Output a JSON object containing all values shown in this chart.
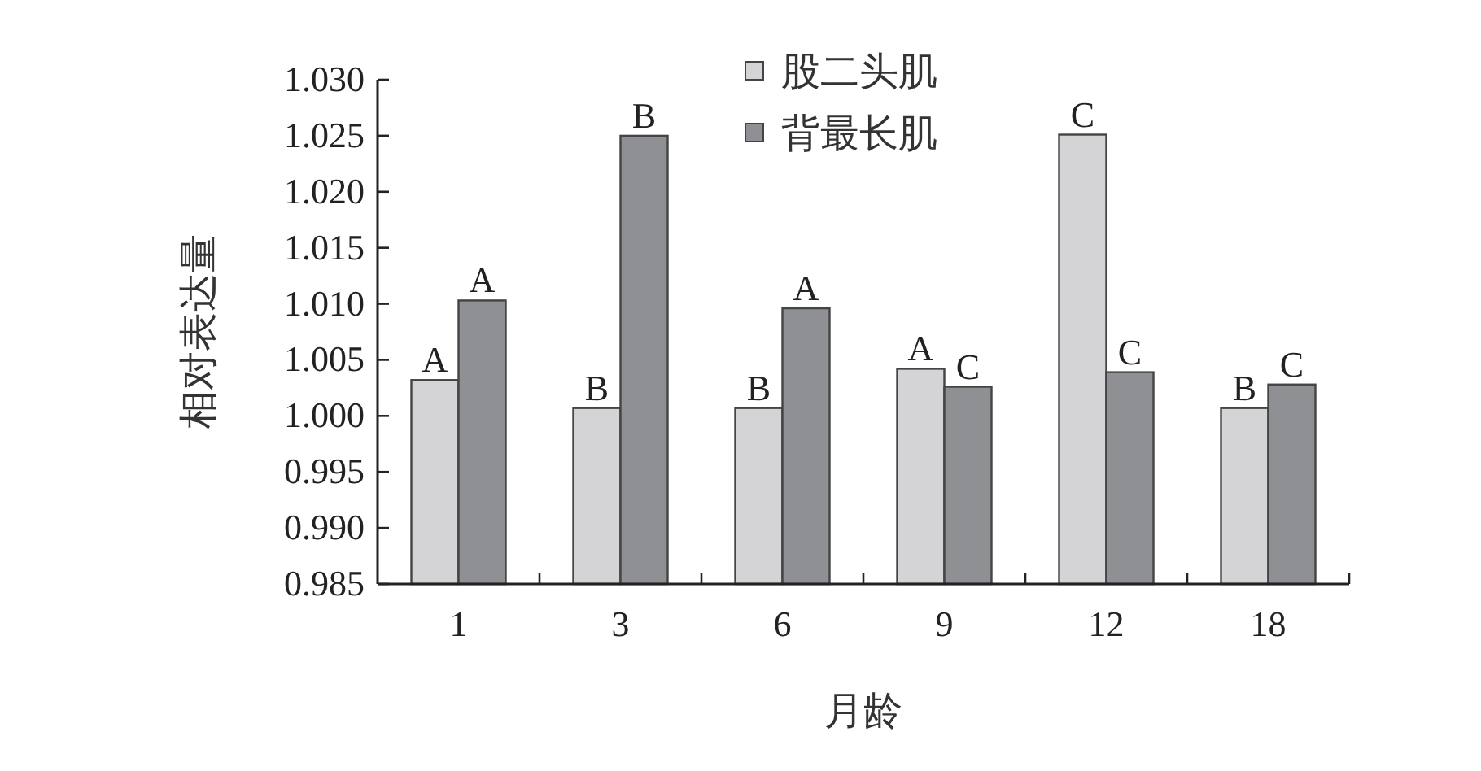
{
  "chart_data": {
    "type": "bar",
    "xlabel": "月龄",
    "ylabel": "相对表达量",
    "categories": [
      "1",
      "3",
      "6",
      "9",
      "12",
      "18"
    ],
    "ylim": [
      0.985,
      1.03
    ],
    "yticks": [
      {
        "value": 0.985,
        "label": "0.985"
      },
      {
        "value": 0.99,
        "label": "0.990"
      },
      {
        "value": 0.995,
        "label": "0.995"
      },
      {
        "value": 1.0,
        "label": "1.000"
      },
      {
        "value": 1.005,
        "label": "1.005"
      },
      {
        "value": 1.01,
        "label": "1.010"
      },
      {
        "value": 1.015,
        "label": "1.015"
      },
      {
        "value": 1.02,
        "label": "1.020"
      },
      {
        "value": 1.025,
        "label": "1.025"
      },
      {
        "value": 1.03,
        "label": "1.030"
      }
    ],
    "legend": "top",
    "series": [
      {
        "name": "股二头肌",
        "color": "#d4d4d6",
        "values": [
          1.0032,
          1.0007,
          1.0007,
          1.0042,
          1.0251,
          1.0007
        ],
        "value_labels": [
          "A",
          "B",
          "B",
          "A",
          "C",
          "B"
        ]
      },
      {
        "name": "背最长肌",
        "color": "#8f9094",
        "values": [
          1.0103,
          1.025,
          1.0096,
          1.0026,
          1.0039,
          1.0028
        ],
        "value_labels": [
          "A",
          "B",
          "A",
          "C",
          "C",
          "C"
        ]
      }
    ]
  }
}
